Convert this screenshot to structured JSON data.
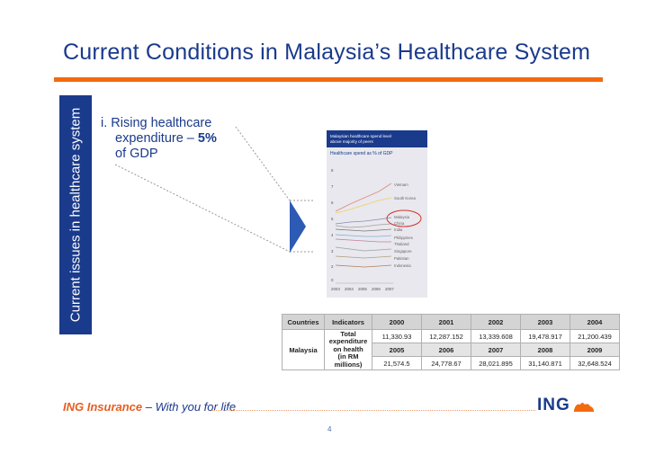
{
  "slide": {
    "title": "Current Conditions in Malaysia’s Healthcare System",
    "side_label": "Current issues in healthcare system",
    "issue_line1": "i. Rising healthcare",
    "issue_line2_prefix": "expenditure – ",
    "issue_line2_bold": "5%",
    "issue_line3": "of GDP",
    "page_number": "4"
  },
  "mini_chart": {
    "header_line1": "Malaysian healthcare spend level",
    "header_line2": "above majority of peers",
    "subtitle": "Healthcare spend as % of GDP",
    "x_ticks": [
      "2003",
      "2004",
      "2005",
      "2006",
      "2007"
    ],
    "y_ticks": [
      "0",
      "2",
      "3",
      "4",
      "5",
      "6",
      "7",
      "8"
    ],
    "series_labels": [
      "Vietnam",
      "South Korea",
      "Malaysia",
      "China",
      "India",
      "Philippines",
      "Thailand",
      "Singapore",
      "Pakistan",
      "Indonesia"
    ],
    "highlight_color": "#d0342c"
  },
  "table": {
    "col_countries": "Countries",
    "col_indicators": "Indicators",
    "years_row1": [
      "2000",
      "2001",
      "2002",
      "2003",
      "2004"
    ],
    "values_row1": [
      "11,330.93",
      "12,287.152",
      "13,339.608",
      "19,478.917",
      "21,200.439"
    ],
    "years_row2": [
      "2005",
      "2006",
      "2007",
      "2008",
      "2009"
    ],
    "values_row2": [
      "21,574.5",
      "24,778.67",
      "28,021.895",
      "31,140.871",
      "32,648.524"
    ],
    "country": "Malaysia",
    "indicator_lines": [
      "Total",
      "expenditure",
      "on health",
      "(in RM",
      "millions)"
    ]
  },
  "footer": {
    "left_brand": "ING Insurance",
    "left_tagline": "– With you for life",
    "right_brand": "ING"
  }
}
